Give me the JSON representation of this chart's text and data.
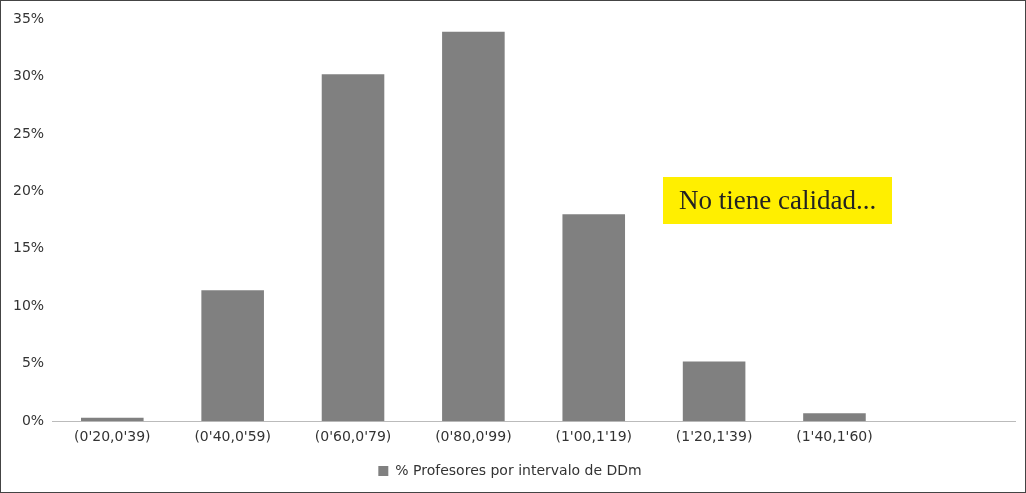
{
  "chart_data": {
    "type": "bar",
    "categories": [
      "(0'20,0'39)",
      "(0'40,0'59)",
      "(0'60,0'79)",
      "(0'80,0'99)",
      "(1'00,1'19)",
      "(1'20,1'39)",
      "(1'40,1'60)",
      null
    ],
    "series": [
      {
        "name": "% Profesores por intervalo de DDm",
        "color": "#808080",
        "values": [
          0.3,
          11.4,
          30.2,
          33.9,
          18.0,
          5.2,
          0.7,
          null
        ]
      }
    ],
    "ylim": [
      0,
      35
    ],
    "yticks": [
      {
        "value": 0,
        "label": "0%"
      },
      {
        "value": 5,
        "label": "5%"
      },
      {
        "value": 10,
        "label": "10%"
      },
      {
        "value": 15,
        "label": "15%"
      },
      {
        "value": 20,
        "label": "20%"
      },
      {
        "value": 25,
        "label": "25%"
      },
      {
        "value": 30,
        "label": "30%"
      },
      {
        "value": 35,
        "label": "35%"
      }
    ],
    "grid": false,
    "legend": "bottom",
    "annotations": [
      "No tiene calidad..."
    ]
  }
}
